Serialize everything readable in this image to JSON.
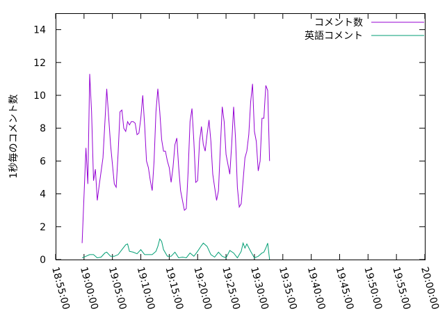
{
  "chart_data": {
    "type": "line",
    "ylabel": "1秒毎のコメント数",
    "ylim": [
      0,
      15
    ],
    "xlim": [
      "18:55:00",
      "20:00:00"
    ],
    "x_ticks": [
      "18:55:00",
      "19:00:00",
      "19:05:00",
      "19:10:00",
      "19:15:00",
      "19:20:00",
      "19:25:00",
      "19:30:00",
      "19:35:00",
      "19:40:00",
      "19:45:00",
      "19:50:00",
      "19:55:00",
      "20:00:00"
    ],
    "y_ticks": [
      0,
      2,
      4,
      6,
      8,
      10,
      12,
      14
    ],
    "legend_position": "top-right",
    "series": [
      {
        "name": "コメント数",
        "color": "#9400d3",
        "points": [
          [
            "18:59:40",
            1.0
          ],
          [
            "19:00:20",
            6.8
          ],
          [
            "19:00:40",
            4.6
          ],
          [
            "19:01:00",
            11.3
          ],
          [
            "19:01:20",
            9.0
          ],
          [
            "19:01:40",
            4.8
          ],
          [
            "19:02:00",
            5.5
          ],
          [
            "19:02:20",
            3.6
          ],
          [
            "19:02:40",
            4.5
          ],
          [
            "19:03:20",
            6.2
          ],
          [
            "19:04:00",
            10.4
          ],
          [
            "19:04:40",
            7.0
          ],
          [
            "19:05:20",
            4.6
          ],
          [
            "19:05:40",
            4.4
          ],
          [
            "19:06:00",
            6.5
          ],
          [
            "19:06:20",
            9.0
          ],
          [
            "19:06:40",
            9.1
          ],
          [
            "19:07:00",
            8.0
          ],
          [
            "19:07:20",
            7.8
          ],
          [
            "19:07:40",
            8.4
          ],
          [
            "19:08:00",
            8.2
          ],
          [
            "19:08:20",
            8.4
          ],
          [
            "19:08:40",
            8.4
          ],
          [
            "19:09:00",
            8.3
          ],
          [
            "19:09:20",
            7.6
          ],
          [
            "19:09:40",
            7.7
          ],
          [
            "19:10:00",
            8.6
          ],
          [
            "19:10:20",
            10.0
          ],
          [
            "19:10:40",
            8.2
          ],
          [
            "19:11:00",
            6.0
          ],
          [
            "19:11:20",
            5.6
          ],
          [
            "19:11:40",
            4.8
          ],
          [
            "19:12:00",
            4.2
          ],
          [
            "19:12:20",
            6.0
          ],
          [
            "19:12:40",
            9.0
          ],
          [
            "19:13:00",
            10.4
          ],
          [
            "19:13:20",
            9.0
          ],
          [
            "19:13:40",
            7.3
          ],
          [
            "19:14:00",
            6.6
          ],
          [
            "19:14:20",
            6.6
          ],
          [
            "19:14:40",
            6.0
          ],
          [
            "19:15:00",
            5.6
          ],
          [
            "19:15:20",
            4.7
          ],
          [
            "19:15:40",
            5.6
          ],
          [
            "19:16:00",
            7.0
          ],
          [
            "19:16:20",
            7.4
          ],
          [
            "19:16:40",
            5.6
          ],
          [
            "19:17:00",
            4.2
          ],
          [
            "19:17:20",
            3.6
          ],
          [
            "19:17:40",
            3.0
          ],
          [
            "19:18:00",
            3.1
          ],
          [
            "19:18:20",
            5.4
          ],
          [
            "19:18:40",
            8.4
          ],
          [
            "19:19:00",
            9.2
          ],
          [
            "19:19:20",
            7.2
          ],
          [
            "19:19:40",
            4.7
          ],
          [
            "19:20:00",
            4.8
          ],
          [
            "19:20:20",
            7.2
          ],
          [
            "19:20:40",
            8.1
          ],
          [
            "19:21:00",
            7.0
          ],
          [
            "19:21:20",
            6.6
          ],
          [
            "19:21:40",
            7.6
          ],
          [
            "19:22:00",
            8.5
          ],
          [
            "19:22:20",
            7.2
          ],
          [
            "19:22:40",
            5.2
          ],
          [
            "19:23:00",
            4.4
          ],
          [
            "19:23:20",
            3.6
          ],
          [
            "19:23:40",
            4.2
          ],
          [
            "19:24:00",
            6.8
          ],
          [
            "19:24:20",
            9.3
          ],
          [
            "19:24:40",
            8.4
          ],
          [
            "19:25:00",
            6.4
          ],
          [
            "19:25:20",
            5.8
          ],
          [
            "19:25:40",
            5.2
          ],
          [
            "19:26:00",
            7.0
          ],
          [
            "19:26:20",
            9.3
          ],
          [
            "19:26:40",
            7.4
          ],
          [
            "19:27:00",
            4.4
          ],
          [
            "19:27:20",
            3.2
          ],
          [
            "19:27:40",
            3.4
          ],
          [
            "19:28:00",
            4.8
          ],
          [
            "19:28:20",
            6.2
          ],
          [
            "19:28:40",
            6.6
          ],
          [
            "19:29:00",
            7.6
          ],
          [
            "19:29:20",
            9.6
          ],
          [
            "19:29:40",
            10.7
          ],
          [
            "19:30:00",
            7.8
          ],
          [
            "19:30:20",
            7.2
          ],
          [
            "19:30:40",
            5.4
          ],
          [
            "19:31:00",
            6.0
          ],
          [
            "19:31:20",
            8.6
          ],
          [
            "19:31:40",
            8.6
          ],
          [
            "19:32:00",
            10.6
          ],
          [
            "19:32:20",
            10.3
          ],
          [
            "19:32:40",
            6.0
          ]
        ]
      },
      {
        "name": "英語コメント",
        "color": "#009e73",
        "points": [
          [
            "18:59:40",
            0.1
          ],
          [
            "19:00:20",
            0.2
          ],
          [
            "19:01:00",
            0.3
          ],
          [
            "19:01:40",
            0.3
          ],
          [
            "19:02:20",
            0.1
          ],
          [
            "19:03:00",
            0.15
          ],
          [
            "19:03:40",
            0.4
          ],
          [
            "19:04:00",
            0.45
          ],
          [
            "19:04:40",
            0.2
          ],
          [
            "19:05:20",
            0.2
          ],
          [
            "19:06:00",
            0.3
          ],
          [
            "19:06:40",
            0.6
          ],
          [
            "19:07:20",
            0.9
          ],
          [
            "19:07:40",
            0.95
          ],
          [
            "19:08:00",
            0.5
          ],
          [
            "19:08:40",
            0.45
          ],
          [
            "19:09:20",
            0.35
          ],
          [
            "19:10:00",
            0.6
          ],
          [
            "19:10:40",
            0.3
          ],
          [
            "19:11:20",
            0.3
          ],
          [
            "19:12:00",
            0.3
          ],
          [
            "19:12:40",
            0.5
          ],
          [
            "19:13:00",
            0.8
          ],
          [
            "19:13:20",
            1.25
          ],
          [
            "19:13:40",
            1.1
          ],
          [
            "19:14:00",
            0.6
          ],
          [
            "19:14:40",
            0.2
          ],
          [
            "19:15:20",
            0.2
          ],
          [
            "19:16:00",
            0.45
          ],
          [
            "19:16:40",
            0.1
          ],
          [
            "19:17:20",
            0.15
          ],
          [
            "19:18:00",
            0.1
          ],
          [
            "19:18:40",
            0.4
          ],
          [
            "19:19:20",
            0.2
          ],
          [
            "19:20:00",
            0.5
          ],
          [
            "19:20:40",
            0.85
          ],
          [
            "19:21:00",
            1.0
          ],
          [
            "19:21:40",
            0.8
          ],
          [
            "19:22:20",
            0.3
          ],
          [
            "19:23:00",
            0.15
          ],
          [
            "19:23:40",
            0.45
          ],
          [
            "19:24:20",
            0.2
          ],
          [
            "19:25:00",
            0.1
          ],
          [
            "19:25:40",
            0.55
          ],
          [
            "19:26:20",
            0.4
          ],
          [
            "19:27:00",
            0.1
          ],
          [
            "19:27:40",
            0.5
          ],
          [
            "19:28:00",
            1.0
          ],
          [
            "19:28:20",
            0.7
          ],
          [
            "19:28:40",
            0.95
          ],
          [
            "19:29:20",
            0.5
          ],
          [
            "19:30:00",
            0.1
          ],
          [
            "19:30:40",
            0.2
          ],
          [
            "19:31:20",
            0.4
          ],
          [
            "19:31:40",
            0.45
          ],
          [
            "19:32:00",
            0.7
          ],
          [
            "19:32:20",
            1.0
          ],
          [
            "19:32:40",
            0.0
          ]
        ]
      }
    ]
  }
}
